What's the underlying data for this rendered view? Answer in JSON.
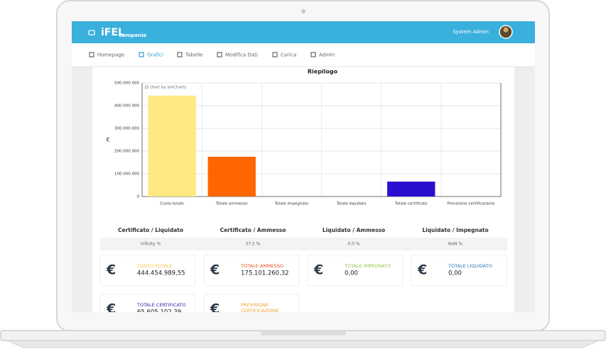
{
  "header": {
    "logo": "iFEL",
    "logo_sub": "Campania",
    "user": "System Admin"
  },
  "nav": [
    "Homepage",
    "Grafici",
    "Tabelle",
    "Modifica Dati",
    "Carica",
    "Admin"
  ],
  "nav_active": 1,
  "chart_data": {
    "type": "bar",
    "title": "Riepilogo",
    "y_label": "€",
    "credit": "JS chart by amCharts",
    "categories": [
      "Costo totale",
      "Totale ammesso",
      "Totale impegnato",
      "Totale liquidato",
      "Totale certificato",
      "Previsione certificazione"
    ],
    "values": [
      444454989.55,
      175101260.32,
      0,
      0,
      65605102.39,
      0
    ],
    "colors": [
      "#fee982",
      "#ff6600",
      "#9acd32",
      "#2a7ab8",
      "#2b0fd0",
      "#f0a030"
    ],
    "ylim": [
      0,
      500000000
    ],
    "yticks": [
      {
        "value": 0,
        "label": "0"
      },
      {
        "value": 100000000,
        "label": "100.000.000"
      },
      {
        "value": 200000000,
        "label": "200.000.000"
      },
      {
        "value": 300000000,
        "label": "300.000.000"
      },
      {
        "value": 400000000,
        "label": "400.000.000"
      },
      {
        "value": 500000000,
        "label": "500.000.000"
      }
    ],
    "grid": true
  },
  "ratios": {
    "headers": [
      "Certificato / Liquidato",
      "Certificato / Ammesso",
      "Liquidato / Ammesso",
      "Liquidato / Impegnato"
    ],
    "values": [
      "Infinity %",
      "37.5 %",
      "0.0 %",
      "NaN %"
    ]
  },
  "card_symbol": "€",
  "cards": [
    {
      "label": "COSTO TOTALE",
      "value": "444.454.989,55",
      "color": "#f5c542"
    },
    {
      "label": "TOTALE AMMESSO",
      "value": "175.101.260,32",
      "color": "#e8501a"
    },
    {
      "label": "TOTALE IMPEGNATO",
      "value": "0,00",
      "color": "#8cc63f"
    },
    {
      "label": "TOTALE LIQUIDATO",
      "value": "0,00",
      "color": "#2a7ab8"
    },
    {
      "label": "TOTALE CERTIFICATO",
      "value": "65.605.102,39",
      "color": "#3322aa"
    },
    {
      "label": "PREVISIONE CERTIFICAZIONE",
      "color": "#f0a030"
    }
  ]
}
